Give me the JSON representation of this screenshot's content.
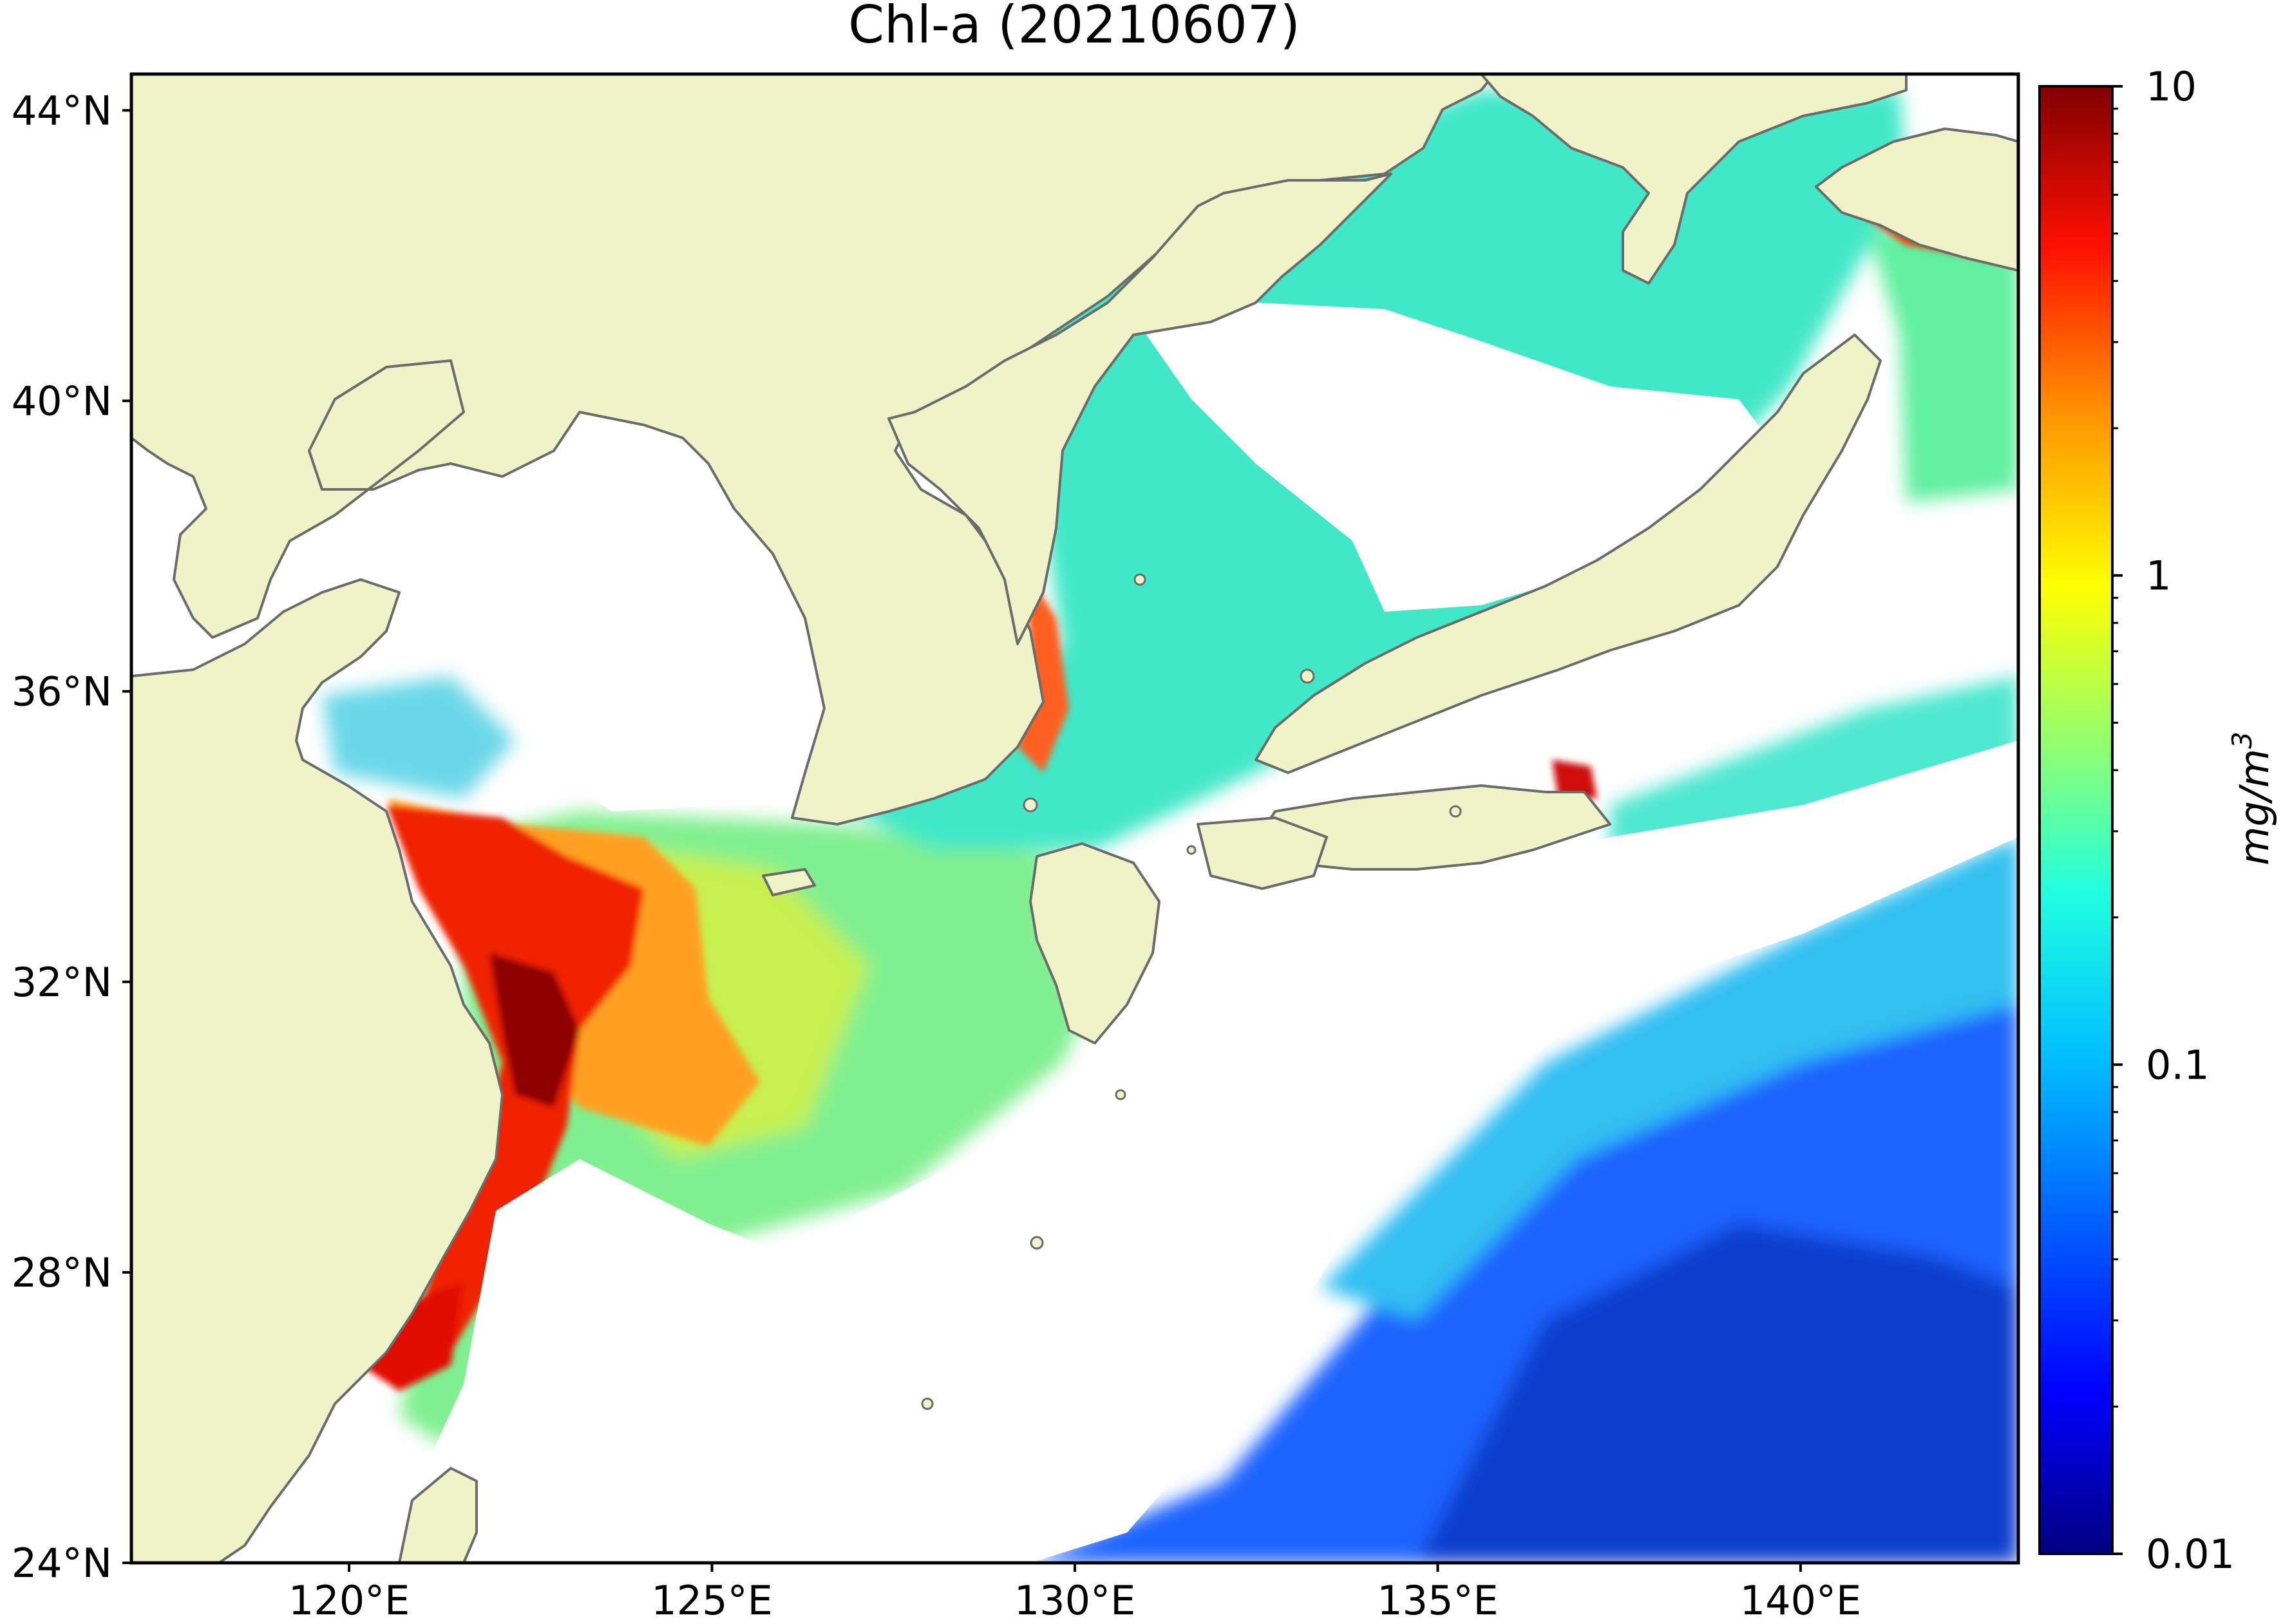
{
  "map": {
    "title": "Chl-a (20210607)",
    "extent": {
      "lon": [
        117,
        143
      ],
      "lat": [
        24,
        44.5
      ]
    },
    "lat_ticks": [
      {
        "value": 44,
        "label": "44°N"
      },
      {
        "value": 40,
        "label": "40°N"
      },
      {
        "value": 36,
        "label": "36°N"
      },
      {
        "value": 32,
        "label": "32°N"
      },
      {
        "value": 28,
        "label": "28°N"
      },
      {
        "value": 24,
        "label": "24°N"
      }
    ],
    "lon_ticks": [
      {
        "value": 120,
        "label": "120°E"
      },
      {
        "value": 125,
        "label": "125°E"
      },
      {
        "value": 130,
        "label": "130°E"
      },
      {
        "value": 135,
        "label": "135°E"
      },
      {
        "value": 140,
        "label": "140°E"
      }
    ],
    "colors": {
      "land": "#eff4c8",
      "coast": "#6b6b6b",
      "no_data": "#ffffff",
      "frame": "#000000"
    }
  },
  "colorbar": {
    "label": "mg/m3",
    "label_base": "mg/m",
    "label_sup": "3",
    "scale": "log",
    "range": [
      0.01,
      10
    ],
    "major_ticks": [
      {
        "value": 10,
        "label": "10"
      },
      {
        "value": 1,
        "label": "1"
      },
      {
        "value": 0.1,
        "label": "0.1"
      },
      {
        "value": 0.01,
        "label": "0.01"
      }
    ],
    "colormap": "jet",
    "stops": [
      "#000080",
      "#0000ff",
      "#00a0ff",
      "#00ffff",
      "#80ff80",
      "#ffff00",
      "#ff8000",
      "#ff0000",
      "#800000"
    ]
  }
}
